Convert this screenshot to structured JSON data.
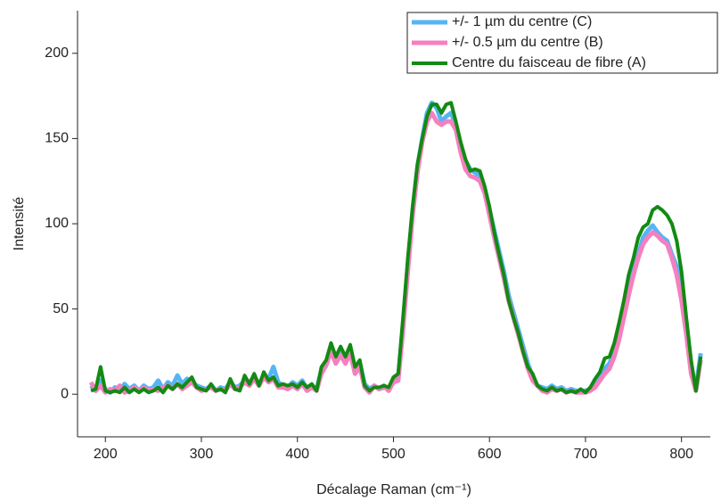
{
  "chart_data": {
    "type": "line",
    "xlabel": "Décalage Raman (cm⁻¹)",
    "ylabel": "Intensité",
    "xlim": [
      171,
      830
    ],
    "ylim": [
      -25,
      225
    ],
    "xticks": [
      200,
      300,
      400,
      500,
      600,
      700,
      800
    ],
    "yticks": [
      0,
      50,
      100,
      150,
      200
    ],
    "legend": "top-right",
    "x": [
      185,
      190,
      195,
      200,
      205,
      210,
      215,
      220,
      225,
      230,
      235,
      240,
      245,
      250,
      255,
      260,
      265,
      270,
      275,
      280,
      285,
      290,
      295,
      300,
      305,
      310,
      315,
      320,
      325,
      330,
      335,
      340,
      345,
      350,
      355,
      360,
      365,
      370,
      375,
      380,
      385,
      390,
      395,
      400,
      405,
      410,
      415,
      420,
      425,
      430,
      435,
      440,
      445,
      450,
      455,
      460,
      465,
      470,
      475,
      480,
      485,
      490,
      495,
      500,
      505,
      510,
      515,
      520,
      525,
      530,
      535,
      540,
      545,
      550,
      555,
      560,
      565,
      570,
      575,
      580,
      585,
      590,
      595,
      600,
      605,
      610,
      615,
      620,
      625,
      630,
      635,
      640,
      645,
      650,
      655,
      660,
      665,
      670,
      675,
      680,
      685,
      690,
      695,
      700,
      705,
      710,
      715,
      720,
      725,
      730,
      735,
      740,
      745,
      750,
      755,
      760,
      765,
      770,
      775,
      780,
      785,
      790,
      795,
      800,
      805,
      810,
      815,
      820
    ],
    "series": [
      {
        "name": "+/- 1 µm du centre (C)",
        "color": "#56b4f5",
        "values": [
          5,
          2,
          8,
          3,
          1,
          4,
          2,
          6,
          3,
          5,
          2,
          5,
          3,
          4,
          8,
          3,
          7,
          5,
          11,
          6,
          9,
          7,
          5,
          4,
          3,
          5,
          2,
          4,
          3,
          7,
          4,
          5,
          8,
          7,
          10,
          6,
          11,
          9,
          16,
          7,
          5,
          4,
          7,
          5,
          8,
          3,
          5,
          3,
          14,
          18,
          27,
          20,
          25,
          20,
          26,
          15,
          18,
          6,
          3,
          5,
          3,
          4,
          3,
          8,
          10,
          40,
          75,
          108,
          133,
          150,
          165,
          171,
          168,
          160,
          163,
          165,
          158,
          145,
          137,
          132,
          130,
          128,
          120,
          108,
          96,
          84,
          72,
          58,
          48,
          38,
          28,
          18,
          10,
          5,
          4,
          3,
          5,
          3,
          4,
          2,
          3,
          2,
          2,
          2,
          3,
          6,
          10,
          15,
          18,
          25,
          35,
          50,
          62,
          72,
          82,
          92,
          96,
          99,
          95,
          92,
          90,
          82,
          75,
          60,
          40,
          15,
          3,
          24
        ]
      },
      {
        "name": "+/- 0.5 µm du centre (B)",
        "color": "#f57fbf",
        "values": [
          7,
          2,
          5,
          1,
          3,
          2,
          5,
          1,
          2,
          4,
          2,
          4,
          2,
          3,
          2,
          4,
          5,
          3,
          6,
          3,
          5,
          7,
          4,
          2,
          3,
          4,
          2,
          3,
          2,
          6,
          3,
          4,
          7,
          5,
          9,
          5,
          10,
          7,
          9,
          4,
          4,
          3,
          5,
          3,
          6,
          2,
          4,
          2,
          12,
          17,
          25,
          18,
          23,
          18,
          24,
          12,
          16,
          4,
          1,
          5,
          3,
          5,
          2,
          7,
          8,
          38,
          72,
          105,
          130,
          148,
          160,
          165,
          160,
          158,
          160,
          160,
          155,
          142,
          132,
          128,
          127,
          125,
          118,
          105,
          92,
          80,
          68,
          55,
          45,
          35,
          25,
          15,
          8,
          5,
          2,
          1,
          3,
          2,
          3,
          1,
          2,
          1,
          1,
          1,
          2,
          4,
          8,
          12,
          15,
          22,
          32,
          45,
          58,
          70,
          80,
          88,
          92,
          95,
          93,
          90,
          88,
          80,
          70,
          55,
          35,
          12,
          2,
          20
        ]
      },
      {
        "name": "Centre du faisceau de fibre (A)",
        "color": "#138a13",
        "values": [
          2,
          3,
          16,
          2,
          1,
          2,
          1,
          4,
          1,
          3,
          1,
          3,
          1,
          2,
          4,
          1,
          5,
          3,
          6,
          4,
          7,
          10,
          4,
          3,
          2,
          6,
          2,
          3,
          1,
          9,
          3,
          2,
          11,
          6,
          12,
          5,
          13,
          8,
          10,
          5,
          6,
          5,
          6,
          4,
          7,
          4,
          6,
          2,
          16,
          20,
          30,
          22,
          28,
          22,
          29,
          16,
          20,
          5,
          2,
          4,
          4,
          5,
          4,
          10,
          12,
          45,
          80,
          110,
          135,
          150,
          163,
          170,
          170,
          165,
          170,
          171,
          160,
          148,
          138,
          131,
          132,
          131,
          122,
          110,
          95,
          82,
          70,
          55,
          45,
          36,
          25,
          16,
          12,
          5,
          3,
          2,
          4,
          2,
          3,
          1,
          2,
          1,
          3,
          1,
          4,
          9,
          13,
          21,
          22,
          30,
          42,
          55,
          70,
          80,
          92,
          98,
          100,
          108,
          110,
          108,
          105,
          100,
          90,
          72,
          45,
          20,
          2,
          22
        ]
      }
    ]
  }
}
